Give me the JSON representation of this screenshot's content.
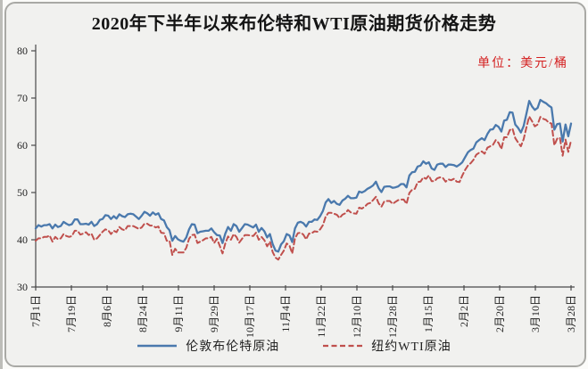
{
  "chart_data": {
    "type": "line",
    "title": "2020年下半年以来布伦特和WTI原油期货价格走势",
    "unit_label": "单位：美元/桶",
    "xlabel": "",
    "ylabel": "",
    "ylim": [
      30,
      80
    ],
    "yticks": [
      30,
      40,
      50,
      60,
      70,
      80
    ],
    "xticklabels": [
      "7月1日",
      "7月19日",
      "8月6日",
      "8月24日",
      "9月11日",
      "9月29日",
      "10月17日",
      "11月4日",
      "11月22日",
      "12月10日",
      "12月28日",
      "1月15日",
      "2月2日",
      "2月20日",
      "3月10日",
      "3月28日"
    ],
    "grid": false,
    "legend_position": "bottom",
    "series": [
      {
        "name": "伦敦布伦特原油",
        "style": "solid",
        "color": "#4a79ad",
        "values": [
          42.4,
          43.1,
          42.8,
          43.1,
          43.1,
          43.3,
          42.4,
          43.2,
          42.7,
          42.9,
          43.8,
          43.4,
          43.1,
          43.3,
          44.3,
          44.3,
          43.3,
          43.3,
          43.4,
          43.2,
          43.8,
          42.9,
          43.3,
          44.2,
          44.4,
          45.2,
          45.1,
          44.4,
          45.0,
          44.5,
          45.4,
          45.0,
          44.8,
          45.4,
          45.5,
          45.4,
          44.9,
          44.4,
          45.1,
          45.9,
          45.6,
          45.1,
          45.8,
          45.3,
          45.6,
          44.4,
          44.1,
          42.7,
          42.0,
          39.8,
          40.8,
          40.1,
          39.8,
          39.6,
          40.5,
          42.2,
          43.3,
          43.2,
          41.4,
          41.7,
          41.8,
          41.9,
          41.9,
          42.4,
          41.6,
          41.0,
          40.9,
          39.3,
          41.3,
          42.7,
          41.9,
          43.3,
          42.9,
          41.7,
          42.5,
          43.3,
          43.2,
          42.9,
          42.6,
          43.2,
          41.7,
          42.5,
          41.8,
          40.5,
          41.2,
          39.1,
          37.7,
          37.5,
          39.0,
          39.7,
          41.2,
          40.9,
          39.5,
          42.4,
          43.6,
          43.8,
          43.5,
          42.8,
          43.8,
          43.8,
          44.3,
          44.2,
          45.0,
          46.1,
          47.9,
          48.6,
          47.8,
          48.2,
          47.6,
          47.4,
          48.3,
          48.7,
          49.3,
          48.8,
          48.8,
          48.9,
          50.2,
          50.0,
          50.3,
          50.8,
          51.1,
          51.5,
          52.3,
          50.9,
          50.1,
          51.2,
          51.3,
          51.3,
          51.0,
          51.1,
          51.3,
          51.8,
          51.8,
          51.1,
          53.6,
          54.3,
          54.4,
          55.5,
          55.7,
          56.6,
          56.1,
          56.4,
          55.1,
          54.8,
          55.9,
          56.1,
          56.1,
          55.4,
          55.9,
          55.9,
          55.8,
          55.5,
          55.9,
          56.4,
          57.5,
          58.5,
          59.0,
          59.3,
          60.6,
          61.1,
          61.5,
          61.1,
          62.4,
          63.3,
          63.4,
          64.3,
          63.9,
          62.9,
          65.2,
          65.4,
          67.0,
          66.9,
          64.4,
          63.7,
          62.7,
          64.1,
          66.7,
          69.4,
          68.2,
          67.5,
          67.9,
          69.6,
          69.2,
          68.9,
          68.4,
          68.0,
          63.3,
          64.5,
          64.6,
          60.8,
          64.4,
          61.9,
          64.6
        ]
      },
      {
        "name": "纽约WTI原油",
        "style": "dashed",
        "color": "#c0504d",
        "values": [
          39.8,
          40.3,
          40.3,
          40.6,
          40.6,
          40.9,
          39.6,
          40.6,
          40.1,
          40.3,
          41.2,
          40.8,
          40.6,
          40.8,
          41.9,
          41.9,
          41.1,
          41.3,
          41.6,
          41.0,
          41.3,
          40.0,
          40.3,
          41.0,
          41.7,
          42.2,
          42.0,
          41.2,
          41.9,
          41.6,
          42.7,
          42.2,
          42.0,
          42.9,
          42.9,
          42.9,
          42.6,
          42.3,
          42.6,
          43.4,
          43.4,
          43.0,
          43.0,
          42.6,
          42.8,
          41.5,
          41.4,
          39.8,
          39.8,
          36.8,
          38.1,
          37.3,
          37.3,
          37.3,
          38.3,
          40.2,
          41.0,
          41.1,
          39.3,
          39.6,
          39.9,
          40.3,
          40.3,
          40.6,
          39.3,
          40.2,
          38.7,
          37.1,
          39.2,
          40.7,
          40.0,
          41.2,
          40.6,
          39.4,
          40.2,
          41.0,
          41.0,
          40.9,
          40.8,
          41.5,
          40.0,
          40.6,
          39.9,
          38.6,
          39.6,
          37.4,
          36.2,
          35.8,
          36.8,
          37.7,
          39.2,
          38.8,
          37.1,
          40.3,
          41.4,
          41.5,
          41.1,
          40.1,
          41.3,
          41.4,
          41.8,
          41.7,
          42.2,
          43.1,
          44.9,
          45.7,
          45.7,
          45.5,
          45.3,
          44.6,
          45.3,
          45.6,
          46.3,
          45.8,
          45.6,
          45.5,
          46.8,
          46.6,
          47.0,
          47.6,
          47.8,
          48.4,
          49.1,
          47.7,
          47.0,
          48.1,
          48.2,
          48.2,
          47.6,
          48.0,
          48.4,
          48.5,
          48.5,
          47.6,
          49.9,
          50.6,
          50.8,
          52.2,
          52.3,
          53.2,
          52.9,
          53.6,
          52.4,
          52.4,
          53.0,
          53.2,
          53.1,
          52.3,
          52.8,
          52.6,
          52.9,
          52.3,
          52.2,
          53.6,
          54.8,
          55.7,
          56.2,
          56.9,
          58.0,
          58.4,
          58.7,
          58.2,
          59.5,
          59.8,
          60.1,
          61.1,
          60.5,
          59.2,
          61.7,
          61.7,
          63.2,
          63.5,
          61.5,
          60.6,
          59.8,
          61.3,
          63.8,
          66.1,
          65.1,
          64.0,
          64.4,
          66.0,
          65.6,
          65.4,
          64.8,
          64.6,
          60.0,
          61.4,
          61.6,
          57.8,
          61.2,
          58.6,
          61.0
        ]
      }
    ]
  },
  "colors": {
    "unit_text": "#d42020",
    "axis": "#4a4a4a",
    "title_text": "#141414",
    "background": "#f1f1ef",
    "frame_border": "#a9a9a5"
  }
}
